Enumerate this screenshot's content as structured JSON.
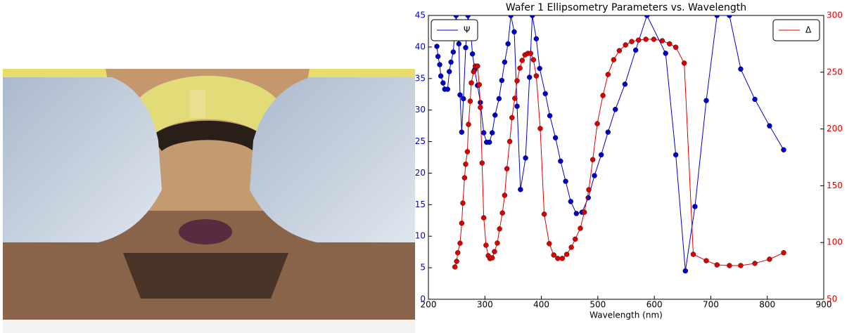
{
  "chart_data": {
    "type": "line",
    "title": "Wafer 1 Ellipsometry Parameters vs. Wavelength",
    "x_label": "Wavelength (nm)",
    "xlim": [
      200,
      900
    ],
    "xticks": [
      200,
      300,
      400,
      500,
      600,
      700,
      800,
      900
    ],
    "ylim": [
      0,
      45
    ],
    "yticks": [
      0,
      5,
      10,
      15,
      20,
      25,
      30,
      35,
      40,
      45
    ],
    "y2lim": [
      50,
      300
    ],
    "y2ticks": [
      50,
      100,
      150,
      200,
      250,
      300
    ],
    "series": [
      {
        "name": "Ψ",
        "color": "#0000cc",
        "legend": "upper left",
        "x": [
          215,
          217,
          220,
          222,
          226,
          229,
          234,
          237,
          240,
          244,
          249,
          254,
          256,
          259,
          262,
          266,
          270,
          275,
          278,
          282,
          287,
          292,
          298,
          303,
          308,
          313,
          318,
          325,
          330,
          335,
          341,
          346,
          352,
          357,
          363,
          372,
          379,
          384,
          391,
          397,
          407,
          415,
          425,
          434,
          443,
          452,
          462,
          472,
          483,
          494,
          506,
          518,
          531,
          548,
          567,
          587,
          620,
          638,
          655,
          672,
          692,
          711,
          733,
          753,
          778,
          804,
          829
        ],
        "values": [
          40.1,
          38.5,
          37.2,
          35.4,
          34.3,
          33.3,
          33.3,
          36.1,
          37.6,
          39.2,
          45,
          40.5,
          32.4,
          26.5,
          31.8,
          39.9,
          45,
          42.4,
          38.9,
          36.4,
          33.9,
          31.2,
          26.4,
          24.9,
          24.9,
          26.4,
          29.2,
          31.8,
          34.7,
          37.6,
          40.5,
          45,
          42.4,
          30.6,
          17.4,
          22.4,
          35.2,
          45,
          41.3,
          36.6,
          32.6,
          29.1,
          25.6,
          21.9,
          18.7,
          15.5,
          13.6,
          13.8,
          16.1,
          19.6,
          22.9,
          26.5,
          30.1,
          34.1,
          39.5,
          45,
          39,
          22.9,
          4.5,
          14.7,
          31.5,
          45,
          45,
          36.5,
          31.7,
          27.5,
          23.7
        ]
      },
      {
        "name": "Δ",
        "color": "#dd0000",
        "axis": "y2",
        "legend": "upper right",
        "x": [
          247,
          250,
          252,
          256,
          259,
          261,
          264,
          266,
          269,
          271,
          274,
          276,
          280,
          283,
          287,
          290,
          292,
          295,
          298,
          302,
          306,
          309,
          313,
          317,
          322,
          326,
          331,
          335,
          339,
          344,
          348,
          353,
          357,
          362,
          366,
          371,
          376,
          381,
          386,
          391,
          398,
          405,
          414,
          422,
          429,
          437,
          445,
          453,
          460,
          469,
          476,
          484,
          491,
          499,
          509,
          518,
          528,
          538,
          549,
          560,
          572,
          585,
          599,
          614,
          627,
          638,
          653,
          669,
          692,
          711,
          733,
          753,
          778,
          804,
          829
        ],
        "values": [
          78.5,
          83.4,
          91,
          99.4,
          117,
          134.7,
          157,
          169,
          180,
          204,
          224.5,
          240.6,
          250.5,
          255.4,
          255.4,
          239,
          219,
          170,
          121.8,
          97.6,
          88.4,
          85.9,
          86.5,
          92,
          99.5,
          112,
          126,
          141.6,
          165,
          189,
          210,
          227,
          242.4,
          253.6,
          260.4,
          265.3,
          266.6,
          266.6,
          261,
          246.8,
          200.4,
          125,
          99,
          89,
          86,
          86,
          89.6,
          95.8,
          103,
          112.5,
          126.7,
          146.5,
          173,
          204.7,
          229.5,
          248,
          261,
          269,
          274,
          277,
          278.3,
          279,
          279,
          277.7,
          275,
          272,
          258,
          89.6,
          84,
          80.3,
          79.7,
          79.7,
          81.6,
          85.3,
          91
        ]
      }
    ]
  }
}
